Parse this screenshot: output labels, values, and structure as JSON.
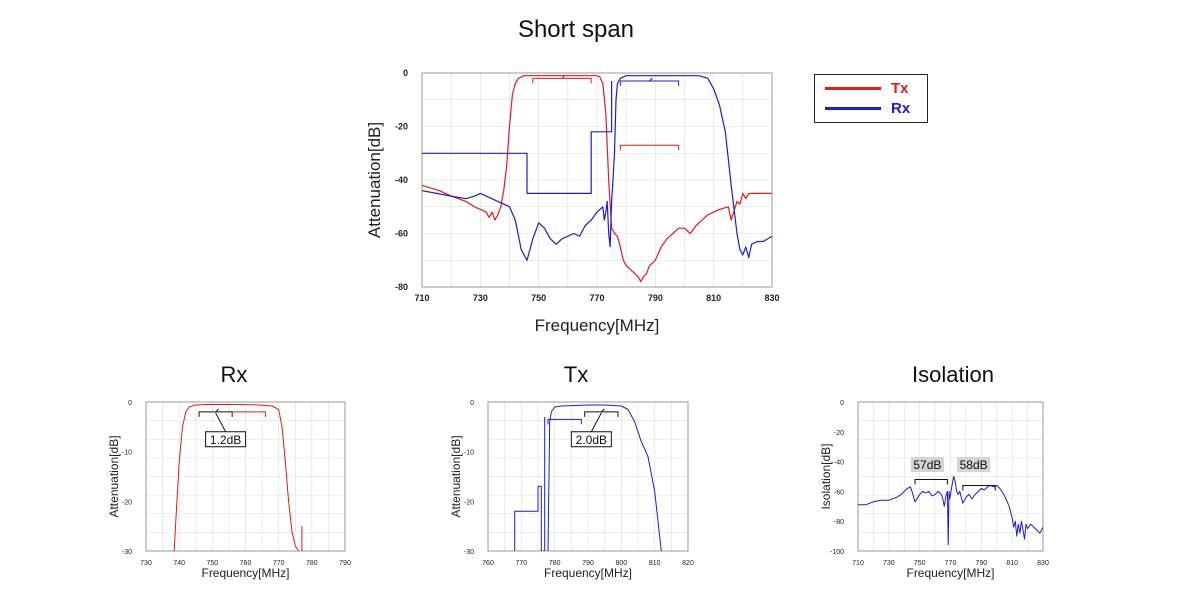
{
  "colors": {
    "tx": "#e31b1b",
    "rx": "#1c1cd6",
    "grid": "#dddddd",
    "frame": "#999999",
    "annotation_box_gray": "#d4d4d4"
  },
  "legend": [
    {
      "label": "Tx",
      "color": "#e31b1b"
    },
    {
      "label": "Rx",
      "color": "#1c1cd6"
    }
  ],
  "chart_data": [
    {
      "id": "short",
      "type": "line",
      "title": "Short span",
      "xlabel": "Frequency[MHz]",
      "ylabel": "Attenuation[dB]",
      "xlim": [
        710,
        830
      ],
      "ylim": [
        -80,
        0
      ],
      "xticks": [
        710,
        730,
        750,
        770,
        790,
        810,
        830
      ],
      "yticks": [
        0,
        -20,
        -40,
        -60,
        -80
      ],
      "grid": true,
      "legend_position": "right-outside",
      "series": [
        {
          "name": "Tx",
          "color": "#e31b1b",
          "x": [
            710,
            716,
            720,
            725,
            728,
            730,
            732,
            733,
            734,
            735,
            736,
            737,
            738,
            739,
            740,
            741,
            742,
            743,
            745,
            750,
            755,
            760,
            765,
            768,
            770,
            771,
            772,
            773,
            774,
            775,
            776,
            777,
            778,
            779,
            780,
            782,
            784,
            785,
            786,
            787,
            788,
            790,
            792,
            794,
            796,
            798,
            800,
            802,
            804,
            806,
            808,
            810,
            812,
            815,
            816,
            818,
            819,
            820,
            821,
            822,
            825,
            830
          ],
          "y": [
            -42,
            -44,
            -46,
            -48,
            -50,
            -51,
            -52,
            -54,
            -52,
            -55,
            -53,
            -50,
            -44,
            -35,
            -20,
            -8,
            -4,
            -2,
            -1,
            -1,
            -1,
            -1,
            -1,
            -1,
            -1,
            -1.5,
            -4,
            -15,
            -40,
            -58,
            -60,
            -61,
            -65,
            -70,
            -72,
            -74,
            -76,
            -78,
            -76,
            -75,
            -72,
            -70,
            -65,
            -62,
            -60,
            -58,
            -58,
            -60,
            -57,
            -55,
            -53,
            -52,
            -51,
            -50,
            -55,
            -48,
            -49,
            -45,
            -47,
            -45,
            -45,
            -45
          ]
        },
        {
          "name": "Rx",
          "color": "#1c1cd6",
          "x": [
            710,
            715,
            720,
            725,
            728,
            730,
            732,
            734,
            736,
            738,
            740,
            742,
            744,
            746,
            748,
            750,
            752,
            754,
            756,
            758,
            760,
            762,
            764,
            766,
            768,
            770,
            771,
            772,
            772.5,
            773,
            773.5,
            774,
            774.5,
            775,
            775.5,
            776,
            776.5,
            777,
            778,
            780,
            785,
            790,
            795,
            800,
            805,
            808,
            810,
            812,
            814,
            816,
            818,
            819,
            820,
            821,
            822,
            823,
            825,
            827,
            830
          ],
          "y": [
            -44,
            -45,
            -46,
            -47,
            -46,
            -45,
            -46,
            -47,
            -48,
            -49,
            -50,
            -55,
            -66,
            -70,
            -62,
            -56,
            -58,
            -62,
            -64,
            -62,
            -61,
            -60,
            -61,
            -57,
            -55,
            -52,
            -51,
            -50,
            -55,
            -52,
            -48,
            -60,
            -65,
            -48,
            -40,
            -30,
            -10,
            -4,
            -2,
            -1,
            -1,
            -1,
            -1,
            -1,
            -1,
            -2,
            -6,
            -12,
            -22,
            -42,
            -60,
            -66,
            -68,
            -65,
            -69,
            -64,
            -63,
            -63,
            -61
          ]
        },
        {
          "name": "Rx mask",
          "color": "#1c1cd6",
          "x": [
            710,
            746,
            746,
            768,
            768,
            775,
            775
          ],
          "y": [
            -30,
            -30,
            -45,
            -45,
            -22,
            -22,
            -3
          ]
        }
      ],
      "spec_brackets": [
        {
          "color": "#e31b1b",
          "x1": 748,
          "x2": 768,
          "y": -2,
          "mid": 758
        },
        {
          "color": "#e31b1b",
          "x1": 778,
          "x2": 798,
          "y": -27,
          "mid": null
        },
        {
          "color": "#1c1cd6",
          "x1": 778,
          "x2": 798,
          "y": -3,
          "mid": 788
        }
      ]
    },
    {
      "id": "rx",
      "type": "line",
      "title": "Rx",
      "xlabel": "Frequency[MHz]",
      "ylabel": "Attenuation[dB]",
      "xlim": [
        730,
        790
      ],
      "ylim": [
        -30,
        0
      ],
      "xticks": [
        730,
        740,
        750,
        760,
        770,
        780,
        790
      ],
      "yticks": [
        0,
        -10,
        -20,
        -30
      ],
      "grid": true,
      "series": [
        {
          "name": "Rx",
          "color": "#e31b1b",
          "x": [
            738.5,
            739,
            740,
            741,
            742,
            743,
            745,
            748,
            752,
            758,
            764,
            768,
            770,
            771,
            772,
            773,
            774,
            775,
            776
          ],
          "y": [
            -30,
            -24,
            -12,
            -5,
            -2,
            -1,
            -0.6,
            -0.5,
            -0.5,
            -0.5,
            -0.6,
            -0.8,
            -1.5,
            -5,
            -12,
            -20,
            -26,
            -29,
            -30
          ]
        },
        {
          "name": "marker",
          "color": "#e31b1b",
          "x": [
            777,
            777
          ],
          "y": [
            -25,
            -30
          ]
        }
      ],
      "annotations": [
        {
          "text": "1.2dB",
          "box": "white"
        }
      ],
      "spec_brackets": [
        {
          "color": "#111111",
          "x1": 746,
          "x2": 756,
          "y": -2,
          "mid": 751
        },
        {
          "color": "#e31b1b",
          "x1": 756,
          "x2": 766,
          "y": -2,
          "mid": null
        }
      ]
    },
    {
      "id": "tx",
      "type": "line",
      "title": "Tx",
      "xlabel": "Frequency[MHz]",
      "ylabel": "Attenuation[dB]",
      "xlim": [
        760,
        820
      ],
      "ylim": [
        -30,
        0
      ],
      "xticks": [
        760,
        770,
        780,
        790,
        800,
        810,
        820
      ],
      "yticks": [
        0,
        -10,
        -20,
        -30
      ],
      "grid": true,
      "series": [
        {
          "name": "Tx",
          "color": "#1c1cd6",
          "x": [
            778,
            778.5,
            779,
            780,
            782,
            786,
            790,
            795,
            800,
            802,
            804,
            806,
            808,
            810,
            812
          ],
          "y": [
            -30,
            -4,
            -2,
            -1,
            -0.8,
            -0.7,
            -0.6,
            -0.6,
            -0.8,
            -1.5,
            -4,
            -8,
            -11,
            -18,
            -30
          ]
        },
        {
          "name": "mask",
          "color": "#1c1cd6",
          "x": [
            768,
            768,
            775,
            775,
            776,
            776,
            777,
            777
          ],
          "y": [
            -30,
            -22,
            -22,
            -17,
            -17,
            -30,
            -30,
            -3
          ]
        }
      ],
      "annotations": [
        {
          "text": "2.0dB",
          "box": "white"
        }
      ],
      "spec_brackets": [
        {
          "color": "#1c1cd6",
          "x1": 778,
          "x2": 788,
          "y": -3.5,
          "mid": null
        },
        {
          "color": "#111111",
          "x1": 789,
          "x2": 799,
          "y": -2,
          "mid": 794
        }
      ]
    },
    {
      "id": "iso",
      "type": "line",
      "title": "Isolation",
      "xlabel": "Frequency[MHz]",
      "ylabel": "Isolation[dB]",
      "xlim": [
        710,
        830
      ],
      "ylim": [
        -100,
        0
      ],
      "xticks": [
        710,
        730,
        750,
        770,
        790,
        810,
        830
      ],
      "yticks": [
        0,
        -20,
        -40,
        -60,
        -80,
        -100
      ],
      "grid": true,
      "series": [
        {
          "name": "Isolation",
          "color": "#1c1cd6",
          "x": [
            710,
            715,
            720,
            725,
            730,
            735,
            738,
            740,
            742,
            744,
            745,
            747,
            750,
            752,
            754,
            756,
            758,
            760,
            762,
            764,
            765,
            766,
            767,
            768,
            768.5,
            769,
            769.5,
            770,
            771,
            772,
            773,
            774,
            775,
            776,
            778,
            780,
            782,
            784,
            786,
            788,
            790,
            792,
            794,
            796,
            798,
            800,
            802,
            804,
            806,
            808,
            810,
            811,
            812,
            813,
            814,
            815,
            816,
            817,
            818,
            819,
            820,
            822,
            825,
            828,
            830
          ],
          "y": [
            -69,
            -69,
            -67,
            -66,
            -66,
            -64,
            -62,
            -60,
            -58,
            -57,
            -60,
            -67,
            -62,
            -60,
            -61,
            -60,
            -63,
            -62,
            -60,
            -62,
            -65,
            -70,
            -63,
            -60,
            -96,
            -60,
            -65,
            -62,
            -56,
            -50,
            -53,
            -60,
            -62,
            -60,
            -68,
            -64,
            -62,
            -65,
            -62,
            -60,
            -58,
            -59,
            -57,
            -56,
            -57,
            -56,
            -58,
            -61,
            -65,
            -70,
            -78,
            -84,
            -80,
            -90,
            -82,
            -88,
            -80,
            -86,
            -92,
            -82,
            -85,
            -82,
            -85,
            -88,
            -84
          ]
        }
      ],
      "annotations": [
        {
          "text": "57dB",
          "box": "gray"
        },
        {
          "text": "58dB",
          "box": "gray"
        }
      ],
      "spec_brackets": [
        {
          "color": "#111111",
          "x1": 747,
          "x2": 768,
          "y": -52,
          "mid": null
        },
        {
          "color": "#111111",
          "x1": 778,
          "x2": 799,
          "y": -56,
          "mid": null
        }
      ]
    }
  ]
}
